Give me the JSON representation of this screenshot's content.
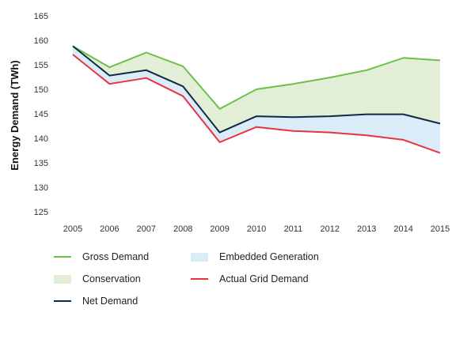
{
  "chart_data": {
    "type": "line",
    "ylabel": "Energy Demand (TWh)",
    "ylim": [
      125,
      165
    ],
    "yticks": [
      125,
      130,
      135,
      140,
      145,
      150,
      155,
      160,
      165
    ],
    "categories": [
      "2005",
      "2006",
      "2007",
      "2008",
      "2009",
      "2010",
      "2011",
      "2012",
      "2013",
      "2014",
      "2015"
    ],
    "series": [
      {
        "name": "Gross Demand",
        "kind": "line",
        "color": "#6cc04a",
        "values": [
          158.8,
          154.5,
          157.5,
          154.7,
          146.0,
          150.0,
          151.1,
          152.4,
          153.9,
          156.4,
          155.9
        ]
      },
      {
        "name": "Net Demand",
        "kind": "line",
        "color": "#0e2a47",
        "values": [
          158.8,
          152.8,
          153.9,
          150.6,
          141.2,
          144.5,
          144.3,
          144.5,
          144.9,
          144.9,
          143.0
        ]
      },
      {
        "name": "Actual Grid Demand",
        "kind": "line",
        "color": "#e8343f",
        "values": [
          157.1,
          151.1,
          152.3,
          148.6,
          139.2,
          142.3,
          141.5,
          141.2,
          140.6,
          139.7,
          137.0
        ]
      }
    ],
    "areas": [
      {
        "name": "Conservation",
        "color": "#e2efd6",
        "between": [
          "Gross Demand",
          "Net Demand"
        ]
      },
      {
        "name": "Embedded Generation",
        "color": "#daecf8",
        "between": [
          "Net Demand",
          "Actual Grid Demand"
        ]
      }
    ],
    "legend": [
      {
        "label": "Gross Demand",
        "kind": "line",
        "color": "#6cc04a"
      },
      {
        "label": "Embedded Generation",
        "kind": "area",
        "color": "#daecf8"
      },
      {
        "label": "Conservation",
        "kind": "area",
        "color": "#e2efd6"
      },
      {
        "label": "Actual Grid Demand",
        "kind": "line",
        "color": "#e8343f"
      },
      {
        "label": "Net Demand",
        "kind": "line",
        "color": "#0e2a47"
      }
    ],
    "grid": false,
    "legend_position": "bottom"
  }
}
